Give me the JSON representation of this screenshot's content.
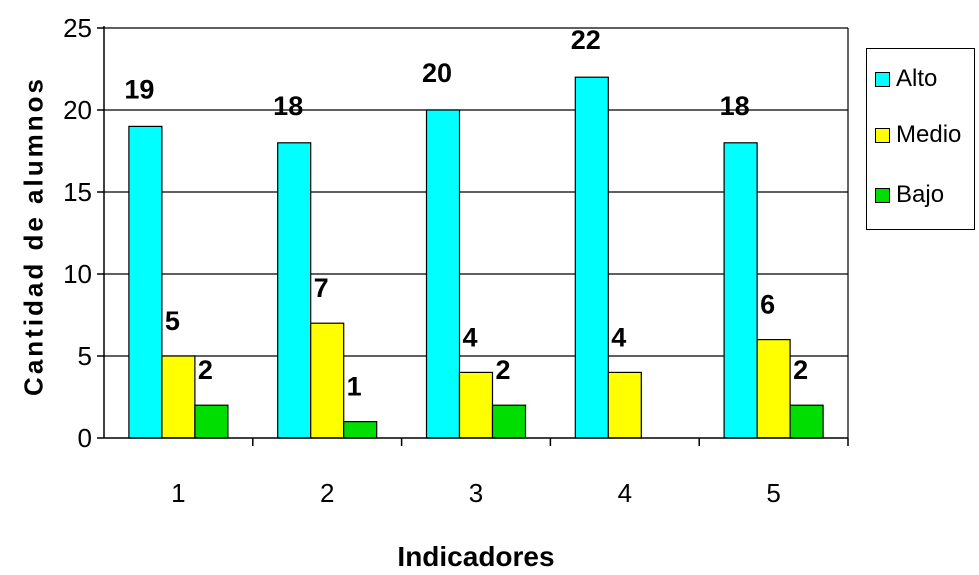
{
  "chart_data": {
    "type": "bar",
    "title": "",
    "xlabel": "Indicadores",
    "ylabel": "Cantidad de alumnos",
    "categories": [
      "1",
      "2",
      "3",
      "4",
      "5"
    ],
    "ylim": [
      0,
      25
    ],
    "yticks": [
      0,
      5,
      10,
      15,
      20,
      25
    ],
    "grid": true,
    "legend_position": "right",
    "series": [
      {
        "name": "Alto",
        "color": "#00FFFF",
        "values": [
          19,
          18,
          20,
          22,
          18
        ],
        "labels": [
          "19",
          "18",
          "20",
          "22",
          "18"
        ]
      },
      {
        "name": "Medio",
        "color": "#FFFF00",
        "values": [
          5,
          7,
          4,
          4,
          6
        ],
        "labels": [
          "5",
          "7",
          "4",
          "4",
          "6"
        ]
      },
      {
        "name": "Bajo",
        "color": "#00DD00",
        "values": [
          2,
          1,
          2,
          0,
          2
        ],
        "labels": [
          "2",
          "1",
          "2",
          "",
          "2"
        ]
      }
    ]
  }
}
